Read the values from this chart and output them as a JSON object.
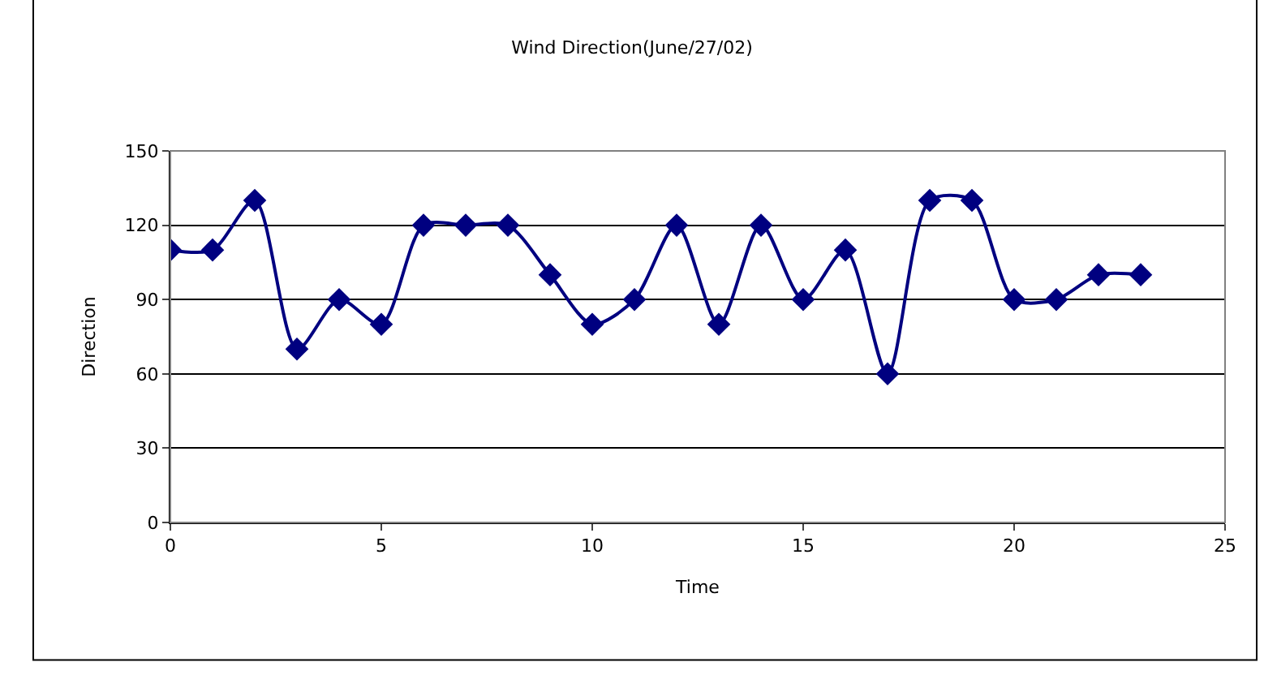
{
  "chart_data": {
    "type": "line",
    "title": "Wind Direction(June/27/02)",
    "xlabel": "Time",
    "ylabel": "Direction",
    "x": [
      0,
      1,
      2,
      3,
      4,
      5,
      6,
      7,
      8,
      9,
      10,
      11,
      12,
      13,
      14,
      15,
      16,
      17,
      18,
      19,
      20,
      21,
      22,
      23
    ],
    "series": [
      {
        "color": "#000080",
        "values": [
          110,
          110,
          130,
          70,
          90,
          80,
          120,
          120,
          120,
          100,
          80,
          90,
          120,
          80,
          120,
          90,
          110,
          60,
          130,
          130,
          90,
          90,
          100,
          100
        ]
      }
    ],
    "xlim": [
      0,
      25
    ],
    "xticks": [
      0,
      5,
      10,
      15,
      20,
      25
    ],
    "ylim": [
      0,
      150
    ],
    "yticks": [
      0,
      30,
      60,
      90,
      120,
      150
    ],
    "grid": "y",
    "marker": "diamond",
    "line_style": "solid"
  }
}
